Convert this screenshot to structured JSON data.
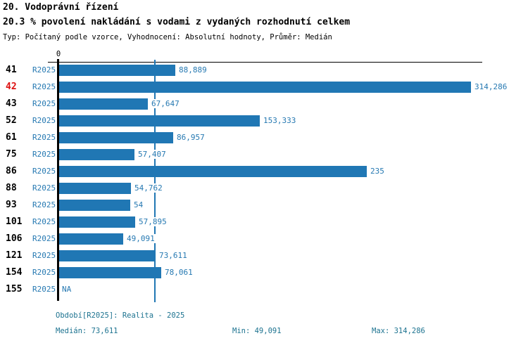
{
  "header": {
    "title_line1": "20. Vodoprávní řízení",
    "title_line2": "20.3 % povolení nakládání s vodami z vydaných rozhodnutí celkem",
    "subtitle": "Typ: Počítaný podle vzorce, Vyhodnocení: Absolutní hodnoty, Průměr: Medián"
  },
  "chart_data": {
    "type": "bar",
    "orientation": "horizontal",
    "axis_zero_label": "0",
    "xlim": [
      0,
      314286
    ],
    "median_value": 73611,
    "series_label": "R2025",
    "highlighted_category": "42",
    "categories": [
      "41",
      "42",
      "43",
      "52",
      "61",
      "75",
      "86",
      "88",
      "93",
      "101",
      "106",
      "121",
      "154",
      "155"
    ],
    "rows": [
      {
        "category": "41",
        "period": "R2025",
        "value_label": "88,889",
        "plot_value": 88889
      },
      {
        "category": "42",
        "period": "R2025",
        "value_label": "314,286",
        "plot_value": 314286
      },
      {
        "category": "43",
        "period": "R2025",
        "value_label": "67,647",
        "plot_value": 67647
      },
      {
        "category": "52",
        "period": "R2025",
        "value_label": "153,333",
        "plot_value": 153333
      },
      {
        "category": "61",
        "period": "R2025",
        "value_label": "86,957",
        "plot_value": 86957
      },
      {
        "category": "75",
        "period": "R2025",
        "value_label": "57,407",
        "plot_value": 57407
      },
      {
        "category": "86",
        "period": "R2025",
        "value_label": "235",
        "plot_value": 235000
      },
      {
        "category": "88",
        "period": "R2025",
        "value_label": "54,762",
        "plot_value": 54762
      },
      {
        "category": "93",
        "period": "R2025",
        "value_label": "54",
        "plot_value": 54000
      },
      {
        "category": "101",
        "period": "R2025",
        "value_label": "57,895",
        "plot_value": 57895
      },
      {
        "category": "106",
        "period": "R2025",
        "value_label": "49,091",
        "plot_value": 49091
      },
      {
        "category": "121",
        "period": "R2025",
        "value_label": "73,611",
        "plot_value": 73611
      },
      {
        "category": "154",
        "period": "R2025",
        "value_label": "78,061",
        "plot_value": 78061
      },
      {
        "category": "155",
        "period": "R2025",
        "value_label": "NA",
        "plot_value": null
      }
    ]
  },
  "footer": {
    "period_line": "Období[R2025]: Realita - 2025",
    "median_label": "Medián: 73,611",
    "min_label": "Min: 49,091",
    "max_label": "Max: 314,286"
  },
  "colors": {
    "bar": "#2077b4",
    "median_line": "#2077b4",
    "blue_text": "#2679b2",
    "highlight_red": "#dd1111",
    "footer_text": "#1d7390",
    "axis": "#000000",
    "black": "#000000"
  }
}
